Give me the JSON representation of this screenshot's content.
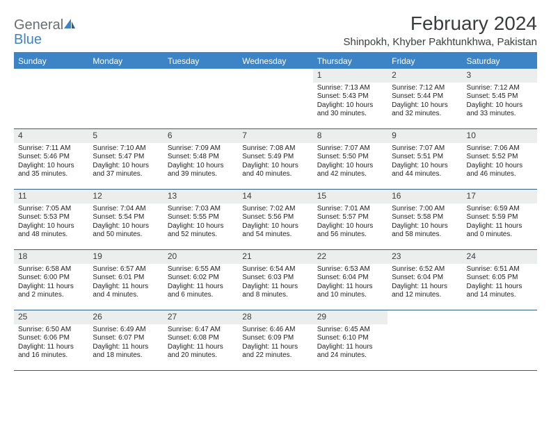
{
  "brand": {
    "name1": "General",
    "name2": "Blue"
  },
  "title": "February 2024",
  "location": "Shinpokh, Khyber Pakhtunkhwa, Pakistan",
  "colors": {
    "header_bg": "#3c84c5",
    "header_text": "#ffffff",
    "day_num_bg": "#eceded",
    "border": "#2e5d8a",
    "text": "#222222",
    "brand_gray": "#6b6e70",
    "brand_blue": "#3c84c5"
  },
  "weekdays": [
    "Sunday",
    "Monday",
    "Tuesday",
    "Wednesday",
    "Thursday",
    "Friday",
    "Saturday"
  ],
  "weeks": [
    [
      {
        "n": "",
        "sr": "",
        "ss": "",
        "dl": ""
      },
      {
        "n": "",
        "sr": "",
        "ss": "",
        "dl": ""
      },
      {
        "n": "",
        "sr": "",
        "ss": "",
        "dl": ""
      },
      {
        "n": "",
        "sr": "",
        "ss": "",
        "dl": ""
      },
      {
        "n": "1",
        "sr": "Sunrise: 7:13 AM",
        "ss": "Sunset: 5:43 PM",
        "dl": "Daylight: 10 hours and 30 minutes."
      },
      {
        "n": "2",
        "sr": "Sunrise: 7:12 AM",
        "ss": "Sunset: 5:44 PM",
        "dl": "Daylight: 10 hours and 32 minutes."
      },
      {
        "n": "3",
        "sr": "Sunrise: 7:12 AM",
        "ss": "Sunset: 5:45 PM",
        "dl": "Daylight: 10 hours and 33 minutes."
      }
    ],
    [
      {
        "n": "4",
        "sr": "Sunrise: 7:11 AM",
        "ss": "Sunset: 5:46 PM",
        "dl": "Daylight: 10 hours and 35 minutes."
      },
      {
        "n": "5",
        "sr": "Sunrise: 7:10 AM",
        "ss": "Sunset: 5:47 PM",
        "dl": "Daylight: 10 hours and 37 minutes."
      },
      {
        "n": "6",
        "sr": "Sunrise: 7:09 AM",
        "ss": "Sunset: 5:48 PM",
        "dl": "Daylight: 10 hours and 39 minutes."
      },
      {
        "n": "7",
        "sr": "Sunrise: 7:08 AM",
        "ss": "Sunset: 5:49 PM",
        "dl": "Daylight: 10 hours and 40 minutes."
      },
      {
        "n": "8",
        "sr": "Sunrise: 7:07 AM",
        "ss": "Sunset: 5:50 PM",
        "dl": "Daylight: 10 hours and 42 minutes."
      },
      {
        "n": "9",
        "sr": "Sunrise: 7:07 AM",
        "ss": "Sunset: 5:51 PM",
        "dl": "Daylight: 10 hours and 44 minutes."
      },
      {
        "n": "10",
        "sr": "Sunrise: 7:06 AM",
        "ss": "Sunset: 5:52 PM",
        "dl": "Daylight: 10 hours and 46 minutes."
      }
    ],
    [
      {
        "n": "11",
        "sr": "Sunrise: 7:05 AM",
        "ss": "Sunset: 5:53 PM",
        "dl": "Daylight: 10 hours and 48 minutes."
      },
      {
        "n": "12",
        "sr": "Sunrise: 7:04 AM",
        "ss": "Sunset: 5:54 PM",
        "dl": "Daylight: 10 hours and 50 minutes."
      },
      {
        "n": "13",
        "sr": "Sunrise: 7:03 AM",
        "ss": "Sunset: 5:55 PM",
        "dl": "Daylight: 10 hours and 52 minutes."
      },
      {
        "n": "14",
        "sr": "Sunrise: 7:02 AM",
        "ss": "Sunset: 5:56 PM",
        "dl": "Daylight: 10 hours and 54 minutes."
      },
      {
        "n": "15",
        "sr": "Sunrise: 7:01 AM",
        "ss": "Sunset: 5:57 PM",
        "dl": "Daylight: 10 hours and 56 minutes."
      },
      {
        "n": "16",
        "sr": "Sunrise: 7:00 AM",
        "ss": "Sunset: 5:58 PM",
        "dl": "Daylight: 10 hours and 58 minutes."
      },
      {
        "n": "17",
        "sr": "Sunrise: 6:59 AM",
        "ss": "Sunset: 5:59 PM",
        "dl": "Daylight: 11 hours and 0 minutes."
      }
    ],
    [
      {
        "n": "18",
        "sr": "Sunrise: 6:58 AM",
        "ss": "Sunset: 6:00 PM",
        "dl": "Daylight: 11 hours and 2 minutes."
      },
      {
        "n": "19",
        "sr": "Sunrise: 6:57 AM",
        "ss": "Sunset: 6:01 PM",
        "dl": "Daylight: 11 hours and 4 minutes."
      },
      {
        "n": "20",
        "sr": "Sunrise: 6:55 AM",
        "ss": "Sunset: 6:02 PM",
        "dl": "Daylight: 11 hours and 6 minutes."
      },
      {
        "n": "21",
        "sr": "Sunrise: 6:54 AM",
        "ss": "Sunset: 6:03 PM",
        "dl": "Daylight: 11 hours and 8 minutes."
      },
      {
        "n": "22",
        "sr": "Sunrise: 6:53 AM",
        "ss": "Sunset: 6:04 PM",
        "dl": "Daylight: 11 hours and 10 minutes."
      },
      {
        "n": "23",
        "sr": "Sunrise: 6:52 AM",
        "ss": "Sunset: 6:04 PM",
        "dl": "Daylight: 11 hours and 12 minutes."
      },
      {
        "n": "24",
        "sr": "Sunrise: 6:51 AM",
        "ss": "Sunset: 6:05 PM",
        "dl": "Daylight: 11 hours and 14 minutes."
      }
    ],
    [
      {
        "n": "25",
        "sr": "Sunrise: 6:50 AM",
        "ss": "Sunset: 6:06 PM",
        "dl": "Daylight: 11 hours and 16 minutes."
      },
      {
        "n": "26",
        "sr": "Sunrise: 6:49 AM",
        "ss": "Sunset: 6:07 PM",
        "dl": "Daylight: 11 hours and 18 minutes."
      },
      {
        "n": "27",
        "sr": "Sunrise: 6:47 AM",
        "ss": "Sunset: 6:08 PM",
        "dl": "Daylight: 11 hours and 20 minutes."
      },
      {
        "n": "28",
        "sr": "Sunrise: 6:46 AM",
        "ss": "Sunset: 6:09 PM",
        "dl": "Daylight: 11 hours and 22 minutes."
      },
      {
        "n": "29",
        "sr": "Sunrise: 6:45 AM",
        "ss": "Sunset: 6:10 PM",
        "dl": "Daylight: 11 hours and 24 minutes."
      },
      {
        "n": "",
        "sr": "",
        "ss": "",
        "dl": ""
      },
      {
        "n": "",
        "sr": "",
        "ss": "",
        "dl": ""
      }
    ]
  ]
}
